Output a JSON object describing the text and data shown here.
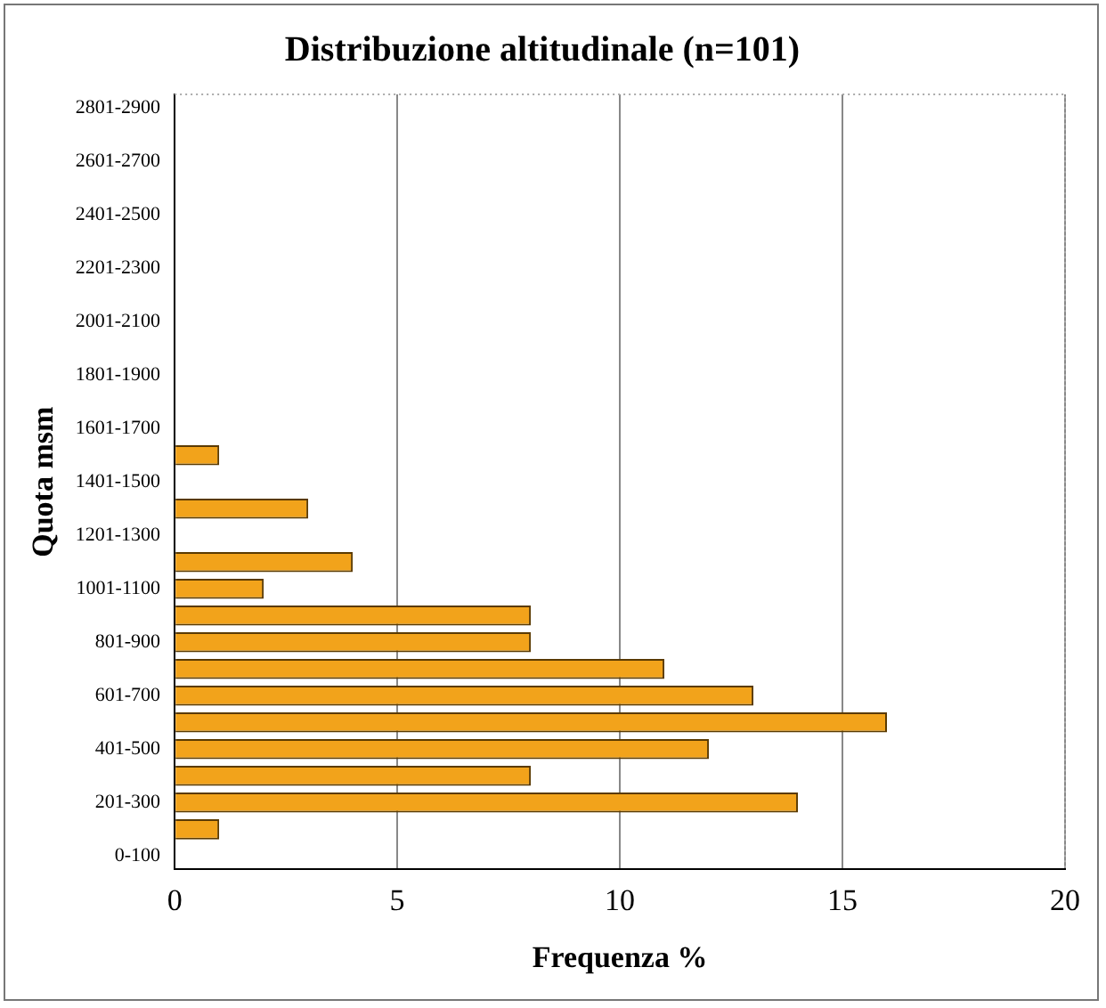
{
  "chart_data": {
    "type": "bar",
    "orientation": "horizontal",
    "title": "Distribuzione altitudinale (n=101)",
    "xlabel": "Frequenza %",
    "ylabel": "Quota msm",
    "categories": [
      "2801-2900",
      null,
      "2601-2700",
      null,
      "2401-2500",
      null,
      "2201-2300",
      null,
      "2001-2100",
      null,
      "1801-1900",
      null,
      "1601-1700",
      null,
      "1401-1500",
      null,
      "1201-1300",
      null,
      "1001-1100",
      null,
      "801-900",
      null,
      "601-700",
      null,
      "401-500",
      null,
      "201-300",
      null,
      "0-100"
    ],
    "values": [
      0,
      0,
      0,
      0,
      0,
      0,
      0,
      0,
      0,
      0,
      0,
      0,
      0,
      1,
      0,
      3,
      0,
      4,
      2,
      8,
      8,
      11,
      13,
      16,
      12,
      8,
      14,
      1,
      0
    ],
    "color": "#f2a31b",
    "xlim": [
      0,
      20
    ],
    "xticks": [
      0,
      5,
      10,
      15,
      20
    ],
    "grid": "x"
  }
}
